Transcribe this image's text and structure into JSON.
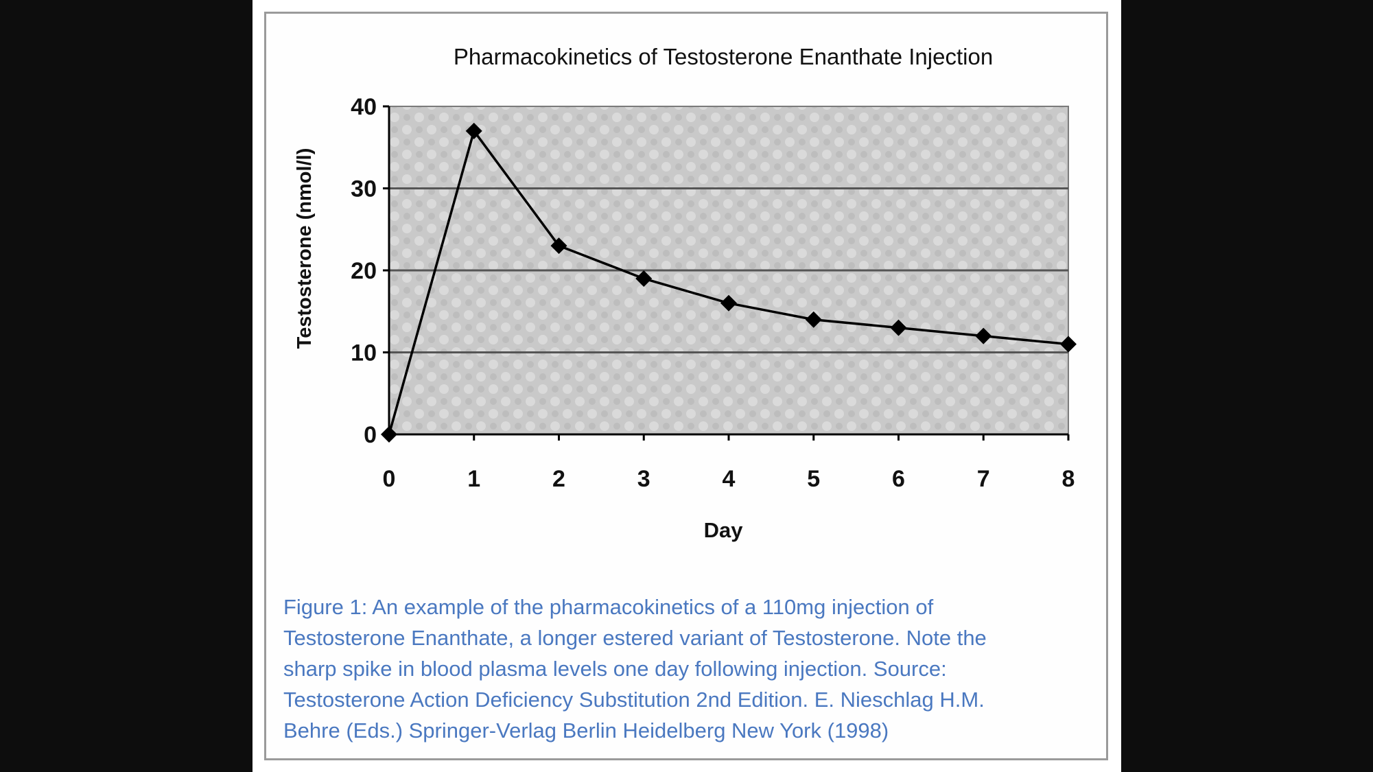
{
  "chart_data": {
    "type": "line",
    "title": "Pharmacokinetics of Testosterone Enanthate Injection",
    "xlabel": "Day",
    "ylabel": "Testosterone (nmol/l)",
    "x": [
      0,
      1,
      2,
      3,
      4,
      5,
      6,
      7,
      8
    ],
    "x_ticks": [
      "0",
      "1",
      "2",
      "3",
      "4",
      "5",
      "6",
      "7",
      "8"
    ],
    "y_ticks": [
      "0",
      "10",
      "20",
      "30",
      "40"
    ],
    "xlim": [
      0,
      8
    ],
    "ylim": [
      0,
      40
    ],
    "grid": "horizontal",
    "series": [
      {
        "values": [
          0,
          37,
          23,
          19,
          16,
          14,
          13,
          12,
          11
        ]
      }
    ],
    "colors": {
      "line": "#000000",
      "plot_bg": "#c9c9c9",
      "grid": "#555555"
    }
  },
  "caption": {
    "lines": [
      "Figure 1: An example of the pharmacokinetics of a 110mg injection of",
      "Testosterone Enanthate, a longer estered variant of Testosterone. Note the",
      "sharp spike in blood plasma levels one day following injection. Source:",
      "Testosterone Action Deficiency Substitution 2nd Edition. E. Nieschlag H.M.",
      "Behre (Eds.) Springer-Verlag Berlin Heidelberg New York (1998)"
    ],
    "color": "#4a78c0"
  }
}
